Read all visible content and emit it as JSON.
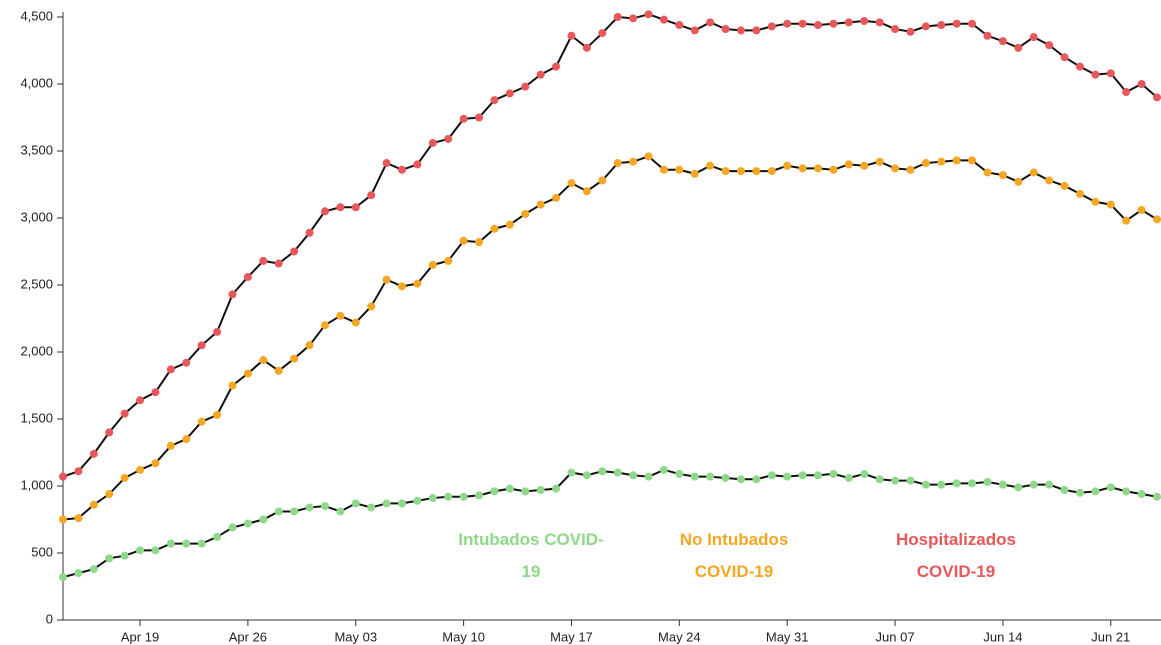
{
  "chart_data": {
    "type": "line",
    "categories": [
      null,
      null,
      null,
      null,
      null,
      "Apr 19",
      null,
      null,
      null,
      null,
      null,
      null,
      "Apr 26",
      null,
      null,
      null,
      null,
      null,
      null,
      "May 03",
      null,
      null,
      null,
      null,
      null,
      null,
      "May 10",
      null,
      null,
      null,
      null,
      null,
      null,
      "May 17",
      null,
      null,
      null,
      null,
      null,
      null,
      "May 24",
      null,
      null,
      null,
      null,
      null,
      null,
      "May 31",
      null,
      null,
      null,
      null,
      null,
      null,
      "Jun 07",
      null,
      null,
      null,
      null,
      null,
      null,
      "Jun 14",
      null,
      null,
      null,
      null,
      null,
      null,
      "Jun 21",
      null,
      null,
      null
    ],
    "series": [
      {
        "name": "Intubados COVID-19",
        "color": "#8fd88a",
        "values": [
          320,
          350,
          380,
          460,
          480,
          520,
          520,
          570,
          570,
          570,
          620,
          690,
          720,
          750,
          810,
          810,
          840,
          850,
          810,
          870,
          840,
          870,
          870,
          890,
          910,
          920,
          920,
          930,
          960,
          980,
          960,
          970,
          980,
          1100,
          1080,
          1110,
          1100,
          1080,
          1070,
          1120,
          1090,
          1070,
          1070,
          1060,
          1050,
          1050,
          1080,
          1070,
          1080,
          1080,
          1090,
          1060,
          1090,
          1050,
          1040,
          1040,
          1010,
          1010,
          1020,
          1020,
          1030,
          1010,
          990,
          1010,
          1010,
          970,
          950,
          960,
          990,
          960,
          940,
          920
        ]
      },
      {
        "name": "No Intubados COVID-19",
        "color": "#f5a623",
        "values": [
          750,
          760,
          860,
          940,
          1060,
          1120,
          1170,
          1300,
          1350,
          1480,
          1530,
          1750,
          1840,
          1940,
          1860,
          1950,
          2050,
          2200,
          2270,
          2220,
          2340,
          2540,
          2490,
          2510,
          2650,
          2680,
          2830,
          2820,
          2920,
          2950,
          3030,
          3100,
          3150,
          3260,
          3200,
          3280,
          3410,
          3420,
          3460,
          3360,
          3360,
          3330,
          3390,
          3350,
          3350,
          3350,
          3350,
          3390,
          3370,
          3370,
          3360,
          3400,
          3390,
          3420,
          3370,
          3360,
          3410,
          3420,
          3430,
          3430,
          3340,
          3320,
          3270,
          3340,
          3280,
          3240,
          3180,
          3120,
          3100,
          2980,
          3060,
          2990
        ]
      },
      {
        "name": "Hospitalizados COVID-19",
        "color": "#e8575a",
        "values": [
          1070,
          1110,
          1240,
          1400,
          1540,
          1640,
          1700,
          1870,
          1920,
          2050,
          2150,
          2430,
          2560,
          2680,
          2660,
          2750,
          2890,
          3050,
          3080,
          3080,
          3170,
          3410,
          3360,
          3400,
          3560,
          3590,
          3740,
          3750,
          3880,
          3930,
          3980,
          4070,
          4130,
          4360,
          4270,
          4380,
          4500,
          4490,
          4520,
          4480,
          4440,
          4400,
          4460,
          4410,
          4400,
          4400,
          4430,
          4450,
          4450,
          4440,
          4450,
          4460,
          4470,
          4460,
          4410,
          4390,
          4430,
          4440,
          4450,
          4450,
          4360,
          4320,
          4270,
          4350,
          4290,
          4200,
          4130,
          4070,
          4080,
          3940,
          4000,
          3900
        ]
      }
    ],
    "ylim": [
      0,
      4500
    ],
    "yticks": [
      0,
      500,
      {
        "value": 1000,
        "label": "1,000"
      },
      {
        "value": 1500,
        "label": "1,500"
      },
      {
        "value": 2000,
        "label": "2,000"
      },
      {
        "value": 2500,
        "label": "2,500"
      },
      {
        "value": 3000,
        "label": "3,000"
      },
      {
        "value": 3500,
        "label": "3,500"
      },
      {
        "value": 4000,
        "label": "4,000"
      },
      {
        "value": 4500,
        "label": "4,500"
      }
    ],
    "grid": false,
    "line_color": "#111111"
  }
}
